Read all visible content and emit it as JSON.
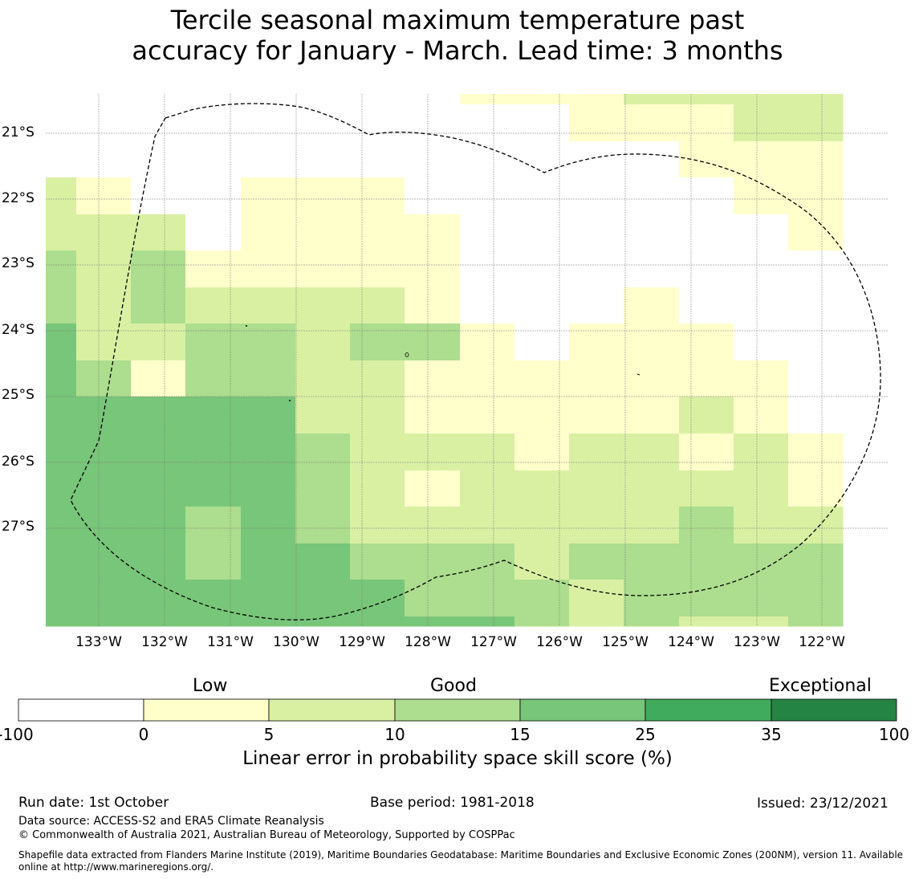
{
  "title": {
    "line1": "Tercile seasonal maximum temperature past",
    "line2": "accuracy for January - March. Lead time: 3 months"
  },
  "map": {
    "lat_labels": [
      "21°S",
      "22°S",
      "23°S",
      "24°S",
      "25°S",
      "26°S",
      "27°S"
    ],
    "lon_labels": [
      "133°W",
      "132°W",
      "131°W",
      "130°W",
      "129°W",
      "128°W",
      "127°W",
      "126°W",
      "125°W",
      "124°W",
      "123°W",
      "122°W"
    ],
    "grid_legend": {
      "0": "no data / below 0",
      "1": "0 to 5",
      "2": "5 to 10",
      "3": "10 to 15",
      "4": "15 to 25"
    },
    "grid_rows": [
      [
        0,
        0,
        0,
        0,
        0,
        0,
        0,
        0,
        1,
        1,
        1,
        2,
        2,
        2,
        2
      ],
      [
        0,
        0,
        0,
        0,
        0,
        0,
        0,
        0,
        0,
        0,
        1,
        1,
        1,
        2,
        2
      ],
      [
        0,
        0,
        0,
        0,
        0,
        0,
        0,
        0,
        0,
        0,
        0,
        0,
        1,
        1,
        1
      ],
      [
        2,
        1,
        0,
        0,
        1,
        1,
        1,
        0,
        0,
        0,
        0,
        0,
        0,
        1,
        1
      ],
      [
        2,
        2,
        2,
        0,
        1,
        1,
        1,
        1,
        0,
        0,
        0,
        0,
        0,
        0,
        1
      ],
      [
        3,
        2,
        3,
        1,
        1,
        1,
        1,
        1,
        0,
        0,
        0,
        0,
        0,
        0,
        0
      ],
      [
        3,
        2,
        3,
        2,
        2,
        2,
        2,
        1,
        0,
        0,
        0,
        1,
        0,
        0,
        0
      ],
      [
        4,
        2,
        2,
        3,
        3,
        2,
        3,
        3,
        1,
        0,
        1,
        1,
        1,
        0,
        0
      ],
      [
        4,
        3,
        1,
        3,
        3,
        2,
        2,
        1,
        1,
        1,
        1,
        1,
        1,
        1,
        0
      ],
      [
        4,
        4,
        4,
        4,
        4,
        2,
        2,
        1,
        1,
        1,
        1,
        1,
        2,
        1,
        0
      ],
      [
        4,
        4,
        4,
        4,
        4,
        3,
        2,
        2,
        2,
        1,
        2,
        2,
        1,
        2,
        1
      ],
      [
        4,
        4,
        4,
        4,
        4,
        3,
        2,
        1,
        2,
        2,
        2,
        2,
        2,
        2,
        1
      ],
      [
        4,
        4,
        4,
        3,
        4,
        3,
        2,
        2,
        2,
        2,
        2,
        2,
        3,
        2,
        2
      ],
      [
        4,
        4,
        4,
        3,
        4,
        4,
        3,
        3,
        3,
        2,
        3,
        3,
        3,
        3,
        3
      ],
      [
        4,
        4,
        4,
        4,
        4,
        4,
        4,
        3,
        3,
        3,
        2,
        3,
        3,
        3,
        3
      ],
      [
        4,
        4,
        4,
        4,
        4,
        4,
        4,
        4,
        4,
        3,
        2,
        3,
        2,
        2,
        3
      ]
    ]
  },
  "colorbar": {
    "categories": [
      "Low",
      "Good",
      "Exceptional"
    ],
    "ticks": [
      "-100",
      "0",
      "5",
      "10",
      "15",
      "25",
      "35",
      "100"
    ],
    "colors": [
      "#ffffff",
      "#ffffcc",
      "#d9f0a3",
      "#addd8e",
      "#78c679",
      "#41ab5d",
      "#238443"
    ],
    "label": "Linear error in probability space skill score (%)"
  },
  "footer": {
    "run_date": "Run date: 1st October",
    "base_period": "Base period: 1981-2018",
    "issued": "Issued: 23/12/2021",
    "data_source": "Data source: ACCESS-S2 and ERA5 Climate Reanalysis",
    "copyright": "© Commonwealth of Australia 2021, Australian Bureau of Meteorology, Supported by COSPPac",
    "shapefile_line1": "Shapefile data extracted from Flanders Marine Institute (2019), Maritime Boundaries Geodatabase: Maritime Boundaries and Exclusive Economic Zones (200NM), version 11. Available",
    "shapefile_line2": "online at http://www.marineregions.org/."
  }
}
